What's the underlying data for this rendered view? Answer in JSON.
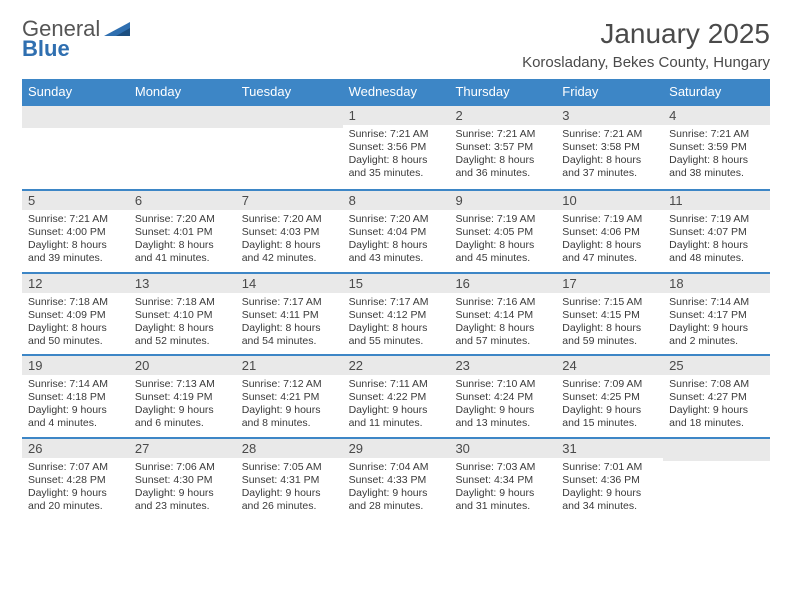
{
  "brand": {
    "word1": "General",
    "word2": "Blue"
  },
  "title": "January 2025",
  "location": "Korosladany, Bekes County, Hungary",
  "colors": {
    "header_bg": "#3d86c6",
    "daynum_bg": "#e9e9e9",
    "text": "#4a4a4a",
    "logo_blue": "#2f6fb0"
  },
  "day_labels": [
    "Sunday",
    "Monday",
    "Tuesday",
    "Wednesday",
    "Thursday",
    "Friday",
    "Saturday"
  ],
  "weeks": [
    [
      {
        "n": "",
        "sr": "",
        "ss": "",
        "dl": ""
      },
      {
        "n": "",
        "sr": "",
        "ss": "",
        "dl": ""
      },
      {
        "n": "",
        "sr": "",
        "ss": "",
        "dl": ""
      },
      {
        "n": "1",
        "sr": "Sunrise: 7:21 AM",
        "ss": "Sunset: 3:56 PM",
        "dl": "Daylight: 8 hours and 35 minutes."
      },
      {
        "n": "2",
        "sr": "Sunrise: 7:21 AM",
        "ss": "Sunset: 3:57 PM",
        "dl": "Daylight: 8 hours and 36 minutes."
      },
      {
        "n": "3",
        "sr": "Sunrise: 7:21 AM",
        "ss": "Sunset: 3:58 PM",
        "dl": "Daylight: 8 hours and 37 minutes."
      },
      {
        "n": "4",
        "sr": "Sunrise: 7:21 AM",
        "ss": "Sunset: 3:59 PM",
        "dl": "Daylight: 8 hours and 38 minutes."
      }
    ],
    [
      {
        "n": "5",
        "sr": "Sunrise: 7:21 AM",
        "ss": "Sunset: 4:00 PM",
        "dl": "Daylight: 8 hours and 39 minutes."
      },
      {
        "n": "6",
        "sr": "Sunrise: 7:20 AM",
        "ss": "Sunset: 4:01 PM",
        "dl": "Daylight: 8 hours and 41 minutes."
      },
      {
        "n": "7",
        "sr": "Sunrise: 7:20 AM",
        "ss": "Sunset: 4:03 PM",
        "dl": "Daylight: 8 hours and 42 minutes."
      },
      {
        "n": "8",
        "sr": "Sunrise: 7:20 AM",
        "ss": "Sunset: 4:04 PM",
        "dl": "Daylight: 8 hours and 43 minutes."
      },
      {
        "n": "9",
        "sr": "Sunrise: 7:19 AM",
        "ss": "Sunset: 4:05 PM",
        "dl": "Daylight: 8 hours and 45 minutes."
      },
      {
        "n": "10",
        "sr": "Sunrise: 7:19 AM",
        "ss": "Sunset: 4:06 PM",
        "dl": "Daylight: 8 hours and 47 minutes."
      },
      {
        "n": "11",
        "sr": "Sunrise: 7:19 AM",
        "ss": "Sunset: 4:07 PM",
        "dl": "Daylight: 8 hours and 48 minutes."
      }
    ],
    [
      {
        "n": "12",
        "sr": "Sunrise: 7:18 AM",
        "ss": "Sunset: 4:09 PM",
        "dl": "Daylight: 8 hours and 50 minutes."
      },
      {
        "n": "13",
        "sr": "Sunrise: 7:18 AM",
        "ss": "Sunset: 4:10 PM",
        "dl": "Daylight: 8 hours and 52 minutes."
      },
      {
        "n": "14",
        "sr": "Sunrise: 7:17 AM",
        "ss": "Sunset: 4:11 PM",
        "dl": "Daylight: 8 hours and 54 minutes."
      },
      {
        "n": "15",
        "sr": "Sunrise: 7:17 AM",
        "ss": "Sunset: 4:12 PM",
        "dl": "Daylight: 8 hours and 55 minutes."
      },
      {
        "n": "16",
        "sr": "Sunrise: 7:16 AM",
        "ss": "Sunset: 4:14 PM",
        "dl": "Daylight: 8 hours and 57 minutes."
      },
      {
        "n": "17",
        "sr": "Sunrise: 7:15 AM",
        "ss": "Sunset: 4:15 PM",
        "dl": "Daylight: 8 hours and 59 minutes."
      },
      {
        "n": "18",
        "sr": "Sunrise: 7:14 AM",
        "ss": "Sunset: 4:17 PM",
        "dl": "Daylight: 9 hours and 2 minutes."
      }
    ],
    [
      {
        "n": "19",
        "sr": "Sunrise: 7:14 AM",
        "ss": "Sunset: 4:18 PM",
        "dl": "Daylight: 9 hours and 4 minutes."
      },
      {
        "n": "20",
        "sr": "Sunrise: 7:13 AM",
        "ss": "Sunset: 4:19 PM",
        "dl": "Daylight: 9 hours and 6 minutes."
      },
      {
        "n": "21",
        "sr": "Sunrise: 7:12 AM",
        "ss": "Sunset: 4:21 PM",
        "dl": "Daylight: 9 hours and 8 minutes."
      },
      {
        "n": "22",
        "sr": "Sunrise: 7:11 AM",
        "ss": "Sunset: 4:22 PM",
        "dl": "Daylight: 9 hours and 11 minutes."
      },
      {
        "n": "23",
        "sr": "Sunrise: 7:10 AM",
        "ss": "Sunset: 4:24 PM",
        "dl": "Daylight: 9 hours and 13 minutes."
      },
      {
        "n": "24",
        "sr": "Sunrise: 7:09 AM",
        "ss": "Sunset: 4:25 PM",
        "dl": "Daylight: 9 hours and 15 minutes."
      },
      {
        "n": "25",
        "sr": "Sunrise: 7:08 AM",
        "ss": "Sunset: 4:27 PM",
        "dl": "Daylight: 9 hours and 18 minutes."
      }
    ],
    [
      {
        "n": "26",
        "sr": "Sunrise: 7:07 AM",
        "ss": "Sunset: 4:28 PM",
        "dl": "Daylight: 9 hours and 20 minutes."
      },
      {
        "n": "27",
        "sr": "Sunrise: 7:06 AM",
        "ss": "Sunset: 4:30 PM",
        "dl": "Daylight: 9 hours and 23 minutes."
      },
      {
        "n": "28",
        "sr": "Sunrise: 7:05 AM",
        "ss": "Sunset: 4:31 PM",
        "dl": "Daylight: 9 hours and 26 minutes."
      },
      {
        "n": "29",
        "sr": "Sunrise: 7:04 AM",
        "ss": "Sunset: 4:33 PM",
        "dl": "Daylight: 9 hours and 28 minutes."
      },
      {
        "n": "30",
        "sr": "Sunrise: 7:03 AM",
        "ss": "Sunset: 4:34 PM",
        "dl": "Daylight: 9 hours and 31 minutes."
      },
      {
        "n": "31",
        "sr": "Sunrise: 7:01 AM",
        "ss": "Sunset: 4:36 PM",
        "dl": "Daylight: 9 hours and 34 minutes."
      },
      {
        "n": "",
        "sr": "",
        "ss": "",
        "dl": ""
      }
    ]
  ]
}
